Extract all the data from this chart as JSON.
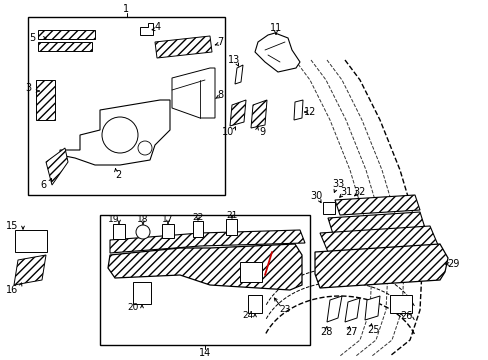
{
  "bg_color": "#ffffff",
  "line_color": "#000000",
  "red_color": "#cc0000",
  "fig_w": 4.89,
  "fig_h": 3.6,
  "dpi": 100
}
